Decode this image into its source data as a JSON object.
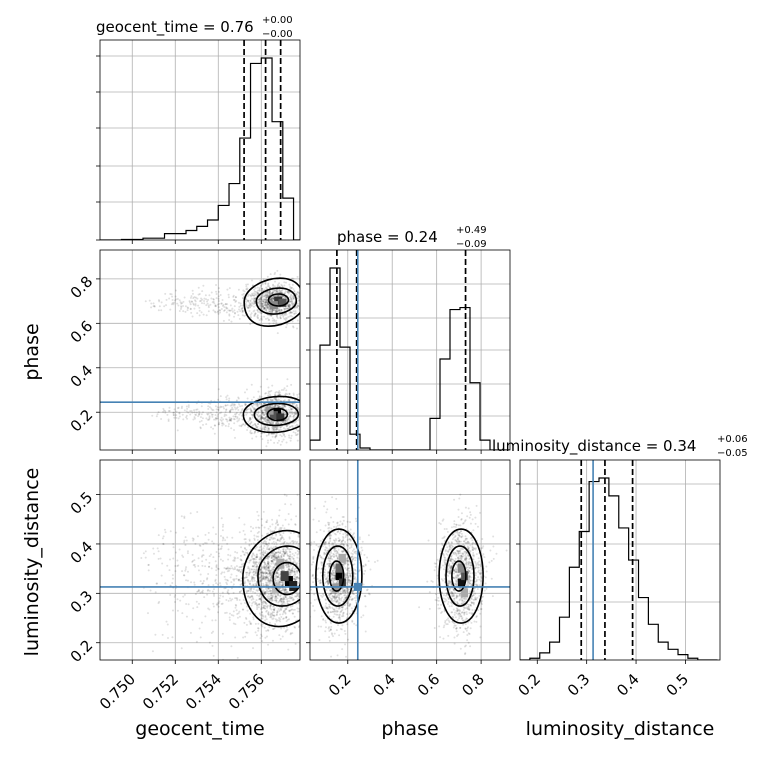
{
  "figure": {
    "type": "corner plot",
    "truth_color": "#4682b4"
  },
  "panel_titles": {
    "geocent_time": {
      "main": "geocent_time = 0.76",
      "plus": "+0.00",
      "minus": "−0.00"
    },
    "phase": {
      "main": "phase = 0.24",
      "plus": "+0.49",
      "minus": "−0.09"
    },
    "luminosity_distance": {
      "main": "luminosity_distance = 0.34",
      "plus": "+0.06",
      "minus": "−0.05"
    }
  },
  "axis_labels": {
    "geocent_time": "geocent_time",
    "phase": "phase",
    "luminosity_distance": "luminosity_distance"
  },
  "chart_data": [
    {
      "type": "histogram",
      "panel": "geocent_time marginal",
      "parameter": "geocent_time",
      "bin_edges": [
        0.7485,
        0.7495,
        0.7505,
        0.7515,
        0.7525,
        0.753,
        0.7535,
        0.754,
        0.7545,
        0.755,
        0.7555,
        0.756,
        0.7565,
        0.757,
        0.7575,
        0.758
      ],
      "densities": [
        0,
        0.003,
        0.01,
        0.035,
        0.052,
        0.075,
        0.11,
        0.19,
        0.31,
        0.56,
        0.97,
        1.0,
        0.65,
        0.23,
        0
      ],
      "quantile_lines": [
        0.7552,
        0.7562,
        0.7569
      ],
      "xlim": [
        0.7485,
        0.7578
      ],
      "grid": true
    },
    {
      "type": "scatter",
      "panel": "phase vs geocent_time",
      "x_parameter": "geocent_time",
      "y_parameter": "phase",
      "xlim": [
        0.7485,
        0.7578
      ],
      "ylim": [
        0.03,
        0.93
      ],
      "yticks": [
        "0.2",
        "0.4",
        "0.6",
        "0.8"
      ],
      "truth_y": 0.245,
      "modes": [
        {
          "x_center": 0.7563,
          "y_center": 0.69,
          "density_peak": [
            0.7568,
            0.705
          ]
        },
        {
          "x_center": 0.7563,
          "y_center": 0.19,
          "density_peak": [
            0.7566,
            0.19
          ]
        }
      ],
      "contour_levels": 3
    },
    {
      "type": "histogram",
      "panel": "phase marginal",
      "parameter": "phase",
      "bin_edges": [
        0.03,
        0.075,
        0.12,
        0.165,
        0.21,
        0.255,
        0.3,
        0.345,
        0.39,
        0.435,
        0.48,
        0.525,
        0.57,
        0.615,
        0.66,
        0.705,
        0.75,
        0.795,
        0.84,
        0.885,
        0.93
      ],
      "densities": [
        0.05,
        0.53,
        0.92,
        0.52,
        0.08,
        0.01,
        0,
        0,
        0,
        0,
        0,
        0,
        0.16,
        0.46,
        0.71,
        0.72,
        0.34,
        0.05,
        0,
        0
      ],
      "quantile_lines": [
        0.151,
        0.24,
        0.73
      ],
      "truth": 0.245,
      "xlim": [
        0.03,
        0.93
      ],
      "grid": true
    },
    {
      "type": "scatter",
      "panel": "luminosity_distance vs geocent_time",
      "x_parameter": "geocent_time",
      "y_parameter": "luminosity_distance",
      "xlim": [
        0.7485,
        0.7578
      ],
      "ylim": [
        0.165,
        0.57
      ],
      "xticks": [
        "0.750",
        "0.752",
        "0.754",
        "0.756"
      ],
      "yticks": [
        "0.2",
        "0.3",
        "0.4",
        "0.5"
      ],
      "truth_y": 0.313,
      "modes": [
        {
          "x_center": 0.7565,
          "y_center": 0.33,
          "density_peak": [
            0.7572,
            0.32
          ]
        }
      ],
      "contour_levels": 3
    },
    {
      "type": "scatter",
      "panel": "luminosity_distance vs phase",
      "x_parameter": "phase",
      "y_parameter": "luminosity_distance",
      "xlim": [
        0.03,
        0.93
      ],
      "ylim": [
        0.165,
        0.57
      ],
      "xticks": [
        "0.2",
        "0.4",
        "0.6",
        "0.8"
      ],
      "truth_x": 0.245,
      "truth_y": 0.313,
      "modes": [
        {
          "x_center": 0.16,
          "y_center": 0.335,
          "density_peak": [
            0.16,
            0.32
          ]
        },
        {
          "x_center": 0.71,
          "y_center": 0.335,
          "density_peak": [
            0.71,
            0.325
          ]
        }
      ],
      "contour_levels": 3
    },
    {
      "type": "histogram",
      "panel": "luminosity_distance marginal",
      "parameter": "luminosity_distance",
      "bin_edges": [
        0.165,
        0.185,
        0.205,
        0.225,
        0.245,
        0.265,
        0.285,
        0.305,
        0.325,
        0.345,
        0.365,
        0.385,
        0.405,
        0.425,
        0.445,
        0.465,
        0.485,
        0.505,
        0.525,
        0.545,
        0.565
      ],
      "densities": [
        0,
        0.01,
        0.04,
        0.1,
        0.24,
        0.52,
        0.72,
        1.0,
        1.02,
        0.92,
        0.74,
        0.56,
        0.35,
        0.2,
        0.1,
        0.06,
        0.03,
        0.01,
        0,
        0
      ],
      "quantile_lines": [
        0.289,
        0.337,
        0.393
      ],
      "truth": 0.313,
      "xlim": [
        0.165,
        0.57
      ],
      "xticks": [
        "0.2",
        "0.3",
        "0.4",
        "0.5"
      ],
      "grid": true
    }
  ]
}
